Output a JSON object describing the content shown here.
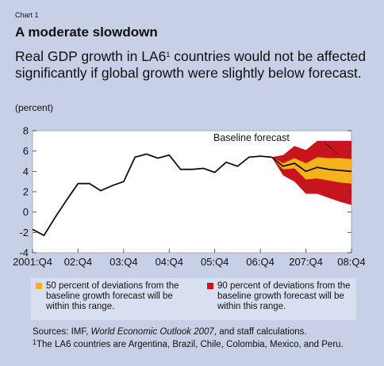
{
  "header": {
    "chart_label": "Chart 1",
    "title": "A moderate slowdown",
    "subtitle_pre": "Real GDP growth in LA6",
    "subtitle_sup": "1",
    "subtitle_post": " countries would not be affected significantly if global growth were slightly below forecast.",
    "unit": "(percent)"
  },
  "annotation": "Baseline forecast",
  "legend": [
    {
      "color": "#f4b21c",
      "text": "50 percent of deviations from the baseline growth forecast will be within this range."
    },
    {
      "color": "#c8141c",
      "text": "90 percent of deviations from the baseline growth forecast will be within this range."
    }
  ],
  "footer": {
    "sources_pre": "Sources: IMF, ",
    "sources_italic": "World Economic Outlook 2007",
    "sources_post": ", and staff calculations.",
    "note_sup": "1",
    "note_text": "The LA6 countries are Argentina, Brazil, Chile, Colombia, Mexico, and Peru."
  },
  "colors": {
    "line": "#111111",
    "band50": "#f4b21c",
    "band90": "#c8141c",
    "background": "#c7d0e6"
  },
  "chart_data": {
    "type": "line",
    "ylim": [
      -4,
      8
    ],
    "yticks": [
      -4,
      -2,
      0,
      2,
      4,
      6,
      8
    ],
    "xlim": [
      0,
      28
    ],
    "xticks": [
      {
        "x": 0,
        "label": "2001:Q4"
      },
      {
        "x": 4,
        "label": "02:Q4"
      },
      {
        "x": 8,
        "label": "03:Q4"
      },
      {
        "x": 12,
        "label": "04:Q4"
      },
      {
        "x": 16,
        "label": "05:Q4"
      },
      {
        "x": 20,
        "label": "06:Q4"
      },
      {
        "x": 24,
        "label": "207:Q4"
      },
      {
        "x": 28,
        "label": "08:Q4"
      }
    ],
    "actual": {
      "x": [
        0,
        1,
        2,
        3,
        4,
        5,
        6,
        7,
        8,
        9,
        10,
        11,
        12,
        13,
        14,
        15,
        16,
        17,
        18,
        19,
        20,
        21
      ],
      "y": [
        -1.7,
        -2.3,
        -0.5,
        1.2,
        2.8,
        2.8,
        2.1,
        2.6,
        3.0,
        5.4,
        5.7,
        5.3,
        5.6,
        4.2,
        4.2,
        4.3,
        3.9,
        4.9,
        4.5,
        5.4,
        5.5,
        5.4
      ]
    },
    "forecast": {
      "x": [
        21,
        22,
        23,
        24,
        25,
        26,
        27,
        28
      ],
      "y": [
        5.4,
        4.5,
        4.8,
        4.0,
        4.4,
        4.2,
        4.1,
        4.0
      ],
      "band50_low": [
        5.4,
        4.2,
        4.3,
        3.2,
        3.3,
        3.1,
        2.9,
        2.8
      ],
      "band50_high": [
        5.4,
        4.8,
        5.3,
        4.8,
        5.4,
        5.3,
        5.3,
        5.2
      ],
      "band90_low": [
        5.4,
        3.6,
        3.0,
        1.8,
        1.8,
        1.4,
        1.0,
        0.7
      ],
      "band90_high": [
        5.4,
        5.6,
        6.5,
        6.1,
        7.0,
        7.0,
        7.0,
        7.0
      ]
    }
  }
}
